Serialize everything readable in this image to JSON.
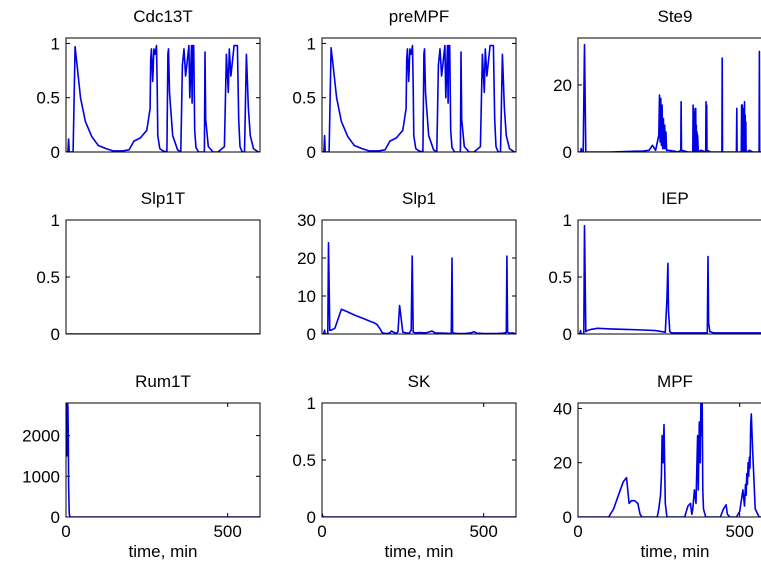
{
  "colors": {
    "line": "#0000e6",
    "axes": "#000000",
    "background": "#ffffff"
  },
  "chart_data": [
    {
      "type": "line",
      "title": "Cdc13T",
      "xlabel": "",
      "xlim": [
        0,
        600
      ],
      "ylim": [
        0,
        1.05
      ],
      "yticks": [
        0,
        0.5,
        1
      ],
      "ytick_labels": [
        "0",
        "0.5",
        "1"
      ],
      "xticks": [],
      "xtick_labels": [],
      "series": [
        {
          "x": [
            0,
            6,
            8,
            10,
            15,
            22,
            28,
            35,
            45,
            60,
            80,
            100,
            125,
            145,
            175,
            195,
            210,
            230,
            250,
            260,
            262,
            264,
            268,
            272,
            276,
            280,
            282,
            284,
            290,
            300,
            312,
            315,
            317,
            320,
            330,
            345,
            355,
            360,
            365,
            370,
            380,
            383,
            388,
            390,
            392,
            395,
            398,
            402,
            410,
            428,
            430,
            432,
            440,
            455,
            460,
            470,
            490,
            496,
            502,
            505,
            510,
            520,
            530,
            534,
            538,
            545,
            552,
            558,
            564,
            570,
            580,
            595,
            600
          ],
          "y": [
            0,
            0,
            0.12,
            0,
            0,
            0,
            0.97,
            0.78,
            0.5,
            0.28,
            0.14,
            0.06,
            0.03,
            0.01,
            0.01,
            0.02,
            0.1,
            0.13,
            0.2,
            0.4,
            0.85,
            0.95,
            0.65,
            0.95,
            0.9,
            0.98,
            0.6,
            0.15,
            0.03,
            0.01,
            0,
            0.9,
            0.95,
            0.55,
            0.15,
            0.02,
            0,
            0.8,
            0.95,
            0.7,
            0.98,
            0.5,
            0.98,
            0.45,
            0.98,
            0.98,
            0.2,
            0.04,
            0,
            0,
            0.92,
            0.3,
            0.05,
            0,
            0,
            0,
            0.05,
            0.9,
            0.55,
            0.95,
            0.7,
            0.98,
            0.98,
            0.3,
            0.05,
            0,
            0,
            0.9,
            0.4,
            0.15,
            0.03,
            0,
            0
          ]
        }
      ]
    },
    {
      "type": "line",
      "title": "preMPF",
      "xlabel": "",
      "xlim": [
        0,
        600
      ],
      "ylim": [
        0,
        1.05
      ],
      "yticks": [
        0,
        0.5,
        1
      ],
      "ytick_labels": [
        "0",
        "0.5",
        "1"
      ],
      "xticks": [],
      "xtick_labels": [],
      "series": [
        {
          "x": [
            0,
            6,
            8,
            10,
            15,
            22,
            28,
            35,
            45,
            60,
            80,
            100,
            125,
            145,
            175,
            195,
            210,
            230,
            250,
            260,
            262,
            264,
            268,
            272,
            276,
            280,
            282,
            284,
            290,
            300,
            312,
            315,
            317,
            320,
            330,
            345,
            355,
            360,
            365,
            370,
            380,
            383,
            388,
            390,
            392,
            395,
            398,
            402,
            410,
            428,
            430,
            432,
            440,
            455,
            460,
            470,
            490,
            496,
            502,
            505,
            510,
            520,
            530,
            534,
            538,
            545,
            552,
            558,
            564,
            570,
            580,
            595,
            600
          ],
          "y": [
            0,
            0,
            0.15,
            0,
            0,
            0,
            0.96,
            0.78,
            0.5,
            0.28,
            0.14,
            0.06,
            0.03,
            0.01,
            0.01,
            0.02,
            0.1,
            0.13,
            0.2,
            0.4,
            0.85,
            0.95,
            0.65,
            0.95,
            0.9,
            0.98,
            0.6,
            0.15,
            0.03,
            0.01,
            0,
            0.9,
            0.95,
            0.55,
            0.15,
            0.02,
            0,
            0.8,
            0.95,
            0.7,
            0.98,
            0.5,
            0.98,
            0.45,
            0.98,
            0.98,
            0.2,
            0.04,
            0,
            0,
            0.92,
            0.3,
            0.05,
            0,
            0,
            0,
            0.05,
            0.9,
            0.55,
            0.95,
            0.7,
            0.98,
            0.98,
            0.3,
            0.05,
            0,
            0,
            0.9,
            0.4,
            0.15,
            0.03,
            0,
            0
          ]
        }
      ]
    },
    {
      "type": "line",
      "title": "Ste9",
      "xlabel": "",
      "xlim": [
        0,
        600
      ],
      "ylim": [
        0,
        34
      ],
      "yticks": [
        0,
        20
      ],
      "ytick_labels": [
        "0",
        "20"
      ],
      "xticks": [],
      "xtick_labels": [],
      "series": [
        {
          "x": [
            0,
            8,
            10,
            12,
            16,
            20,
            24,
            30,
            100,
            200,
            220,
            230,
            240,
            250,
            252,
            254,
            256,
            258,
            260,
            262,
            264,
            266,
            268,
            270,
            272,
            274,
            280,
            300,
            310,
            318,
            319,
            320,
            340,
            355,
            356,
            357,
            358,
            359,
            360,
            361,
            362,
            363,
            364,
            365,
            366,
            367,
            368,
            369,
            370,
            372,
            380,
            395,
            396,
            397,
            398,
            399,
            400,
            410,
            445,
            446,
            447,
            450,
            490,
            491,
            492,
            495,
            505,
            506,
            507,
            508,
            510,
            511,
            512,
            513,
            514,
            515,
            516,
            517,
            518,
            519,
            520,
            522,
            530,
            540,
            560,
            561,
            562,
            570,
            585,
            588,
            591,
            592,
            593,
            600
          ],
          "y": [
            0,
            0,
            1,
            0,
            0,
            32,
            0,
            0,
            0,
            0.3,
            0.5,
            2,
            0.5,
            5,
            17,
            3,
            16,
            2,
            14,
            1,
            10,
            1,
            8,
            1,
            6,
            0.5,
            0.5,
            0.2,
            0,
            0.5,
            15,
            0.5,
            0,
            0,
            14,
            0,
            13,
            0,
            12,
            0,
            10,
            0,
            13,
            0,
            8,
            0,
            6,
            0,
            5,
            0,
            0.5,
            0,
            15,
            0,
            14,
            0,
            0.5,
            0,
            0,
            28,
            0,
            0,
            0,
            13,
            0,
            0,
            0,
            14,
            0,
            14,
            0,
            13,
            0,
            12,
            0,
            15,
            0,
            11,
            0,
            9,
            0,
            0,
            0.5,
            0,
            0,
            30,
            0,
            0,
            0,
            0,
            0,
            28,
            0,
            0
          ]
        }
      ]
    },
    {
      "type": "line",
      "title": "Slp1T",
      "xlabel": "",
      "xlim": [
        0,
        600
      ],
      "ylim": [
        0,
        1
      ],
      "yticks": [
        0,
        0.5,
        1
      ],
      "ytick_labels": [
        "0",
        "0.5",
        "1"
      ],
      "xticks": [],
      "xtick_labels": [],
      "series": [
        {
          "x": [
            0,
            600
          ],
          "y": [
            0,
            0
          ]
        }
      ]
    },
    {
      "type": "line",
      "title": "Slp1",
      "xlabel": "",
      "xlim": [
        0,
        600
      ],
      "ylim": [
        0,
        30
      ],
      "yticks": [
        0,
        10,
        20,
        30
      ],
      "ytick_labels": [
        "0",
        "10",
        "20",
        "30"
      ],
      "xticks": [],
      "xtick_labels": [],
      "series": [
        {
          "x": [
            0,
            5,
            8,
            10,
            14,
            18,
            20,
            24,
            28,
            40,
            60,
            80,
            100,
            130,
            150,
            160,
            170,
            180,
            185,
            190,
            200,
            210,
            215,
            225,
            230,
            235,
            240,
            250,
            260,
            270,
            276,
            279,
            282,
            290,
            300,
            320,
            330,
            340,
            350,
            380,
            400,
            402,
            404,
            408,
            420,
            440,
            460,
            470,
            480,
            500,
            520,
            540,
            560,
            570,
            572,
            574,
            580,
            590,
            600
          ],
          "y": [
            0,
            0,
            1,
            0,
            0,
            0,
            24,
            1,
            1,
            1.5,
            6.5,
            5.8,
            5,
            4,
            3.3,
            3,
            2.5,
            1.3,
            0.5,
            0.2,
            0.1,
            0.3,
            0.8,
            0.3,
            0.2,
            0.6,
            7.5,
            0.5,
            0.3,
            0.2,
            1,
            20.5,
            0.5,
            0.3,
            0.4,
            0.3,
            0.5,
            0.8,
            0.3,
            0.2,
            0.1,
            20,
            0.5,
            0.2,
            0.1,
            0.1,
            0.3,
            0.6,
            0.2,
            0.1,
            0.1,
            0.1,
            0.2,
            0.4,
            20.5,
            0.5,
            0.2,
            0.3,
            0
          ]
        }
      ]
    },
    {
      "type": "line",
      "title": "IEP",
      "xlabel": "",
      "xlim": [
        0,
        600
      ],
      "ylim": [
        0,
        1
      ],
      "yticks": [
        0,
        0.5,
        1
      ],
      "ytick_labels": [
        "0",
        "0.5",
        "1"
      ],
      "xticks": [],
      "xtick_labels": [],
      "series": [
        {
          "x": [
            0,
            5,
            8,
            10,
            14,
            18,
            20,
            24,
            28,
            40,
            60,
            100,
            150,
            200,
            240,
            260,
            270,
            275,
            278,
            280,
            284,
            290,
            300,
            330,
            360,
            380,
            400,
            402,
            404,
            408,
            420,
            460,
            500,
            540,
            560,
            570,
            572,
            574,
            580,
            590,
            600
          ],
          "y": [
            0,
            0,
            0.03,
            0,
            0,
            0,
            0.95,
            0.02,
            0.03,
            0.04,
            0.05,
            0.045,
            0.04,
            0.035,
            0.03,
            0.02,
            0.015,
            0.3,
            0.62,
            0.2,
            0.02,
            0.01,
            0.01,
            0.01,
            0.01,
            0.01,
            0.01,
            0.68,
            0.1,
            0.02,
            0.01,
            0.01,
            0.01,
            0.01,
            0.01,
            0.01,
            0.62,
            0.1,
            0.02,
            0.01,
            0
          ]
        }
      ]
    },
    {
      "type": "line",
      "title": "Rum1T",
      "xlabel": "time, min",
      "xlim": [
        0,
        600
      ],
      "ylim": [
        0,
        2800
      ],
      "yticks": [
        0,
        1000,
        2000
      ],
      "ytick_labels": [
        "0",
        "1000",
        "2000"
      ],
      "xticks": [
        0,
        500
      ],
      "xtick_labels": [
        "0",
        "500"
      ],
      "series": [
        {
          "x": [
            0,
            1,
            2,
            3,
            4,
            5,
            6,
            7,
            8,
            10,
            12,
            600
          ],
          "y": [
            2800,
            2800,
            2000,
            2800,
            1500,
            2800,
            2700,
            2000,
            800,
            100,
            0,
            0
          ]
        }
      ]
    },
    {
      "type": "line",
      "title": "SK",
      "xlabel": "time, min",
      "xlim": [
        0,
        600
      ],
      "ylim": [
        0,
        1
      ],
      "yticks": [
        0,
        0.5,
        1
      ],
      "ytick_labels": [
        "0",
        "0.5",
        "1"
      ],
      "xticks": [
        0,
        500
      ],
      "xtick_labels": [
        "0",
        "500"
      ],
      "series": [
        {
          "x": [
            0,
            1,
            2,
            4,
            600
          ],
          "y": [
            0.03,
            0.02,
            0.01,
            0,
            0
          ]
        }
      ]
    },
    {
      "type": "line",
      "title": "MPF",
      "xlabel": "time, min",
      "xlim": [
        0,
        600
      ],
      "ylim": [
        0,
        42
      ],
      "yticks": [
        0,
        20,
        40
      ],
      "ytick_labels": [
        "0",
        "20",
        "40"
      ],
      "xticks": [
        0,
        500
      ],
      "xtick_labels": [
        "0",
        "500"
      ],
      "series": [
        {
          "x": [
            0,
            95,
            110,
            125,
            140,
            150,
            158,
            165,
            175,
            185,
            192,
            198,
            210,
            245,
            250,
            255,
            258,
            260,
            263,
            266,
            270,
            275,
            300,
            330,
            340,
            348,
            352,
            355,
            360,
            365,
            370,
            372,
            375,
            378,
            380,
            382,
            384,
            386,
            388,
            395,
            410,
            440,
            450,
            458,
            462,
            470,
            480,
            490,
            500,
            510,
            515,
            518,
            520,
            522,
            524,
            526,
            528,
            530,
            532,
            534,
            536,
            540,
            548,
            560,
            600
          ],
          "y": [
            0,
            0,
            3,
            8,
            13,
            14.5,
            5,
            6,
            6,
            5,
            1,
            0,
            0,
            0,
            3,
            8,
            15,
            30,
            20,
            34,
            5,
            0,
            0,
            0,
            4,
            5,
            1,
            3,
            10,
            5,
            30,
            10,
            35,
            20,
            42,
            30,
            42,
            10,
            3,
            0,
            0,
            0,
            3,
            4.5,
            1,
            0,
            0,
            0,
            2,
            10,
            4,
            12,
            8,
            16,
            12,
            20,
            15,
            22,
            18,
            34,
            38,
            25,
            3,
            0,
            0
          ]
        }
      ]
    }
  ]
}
